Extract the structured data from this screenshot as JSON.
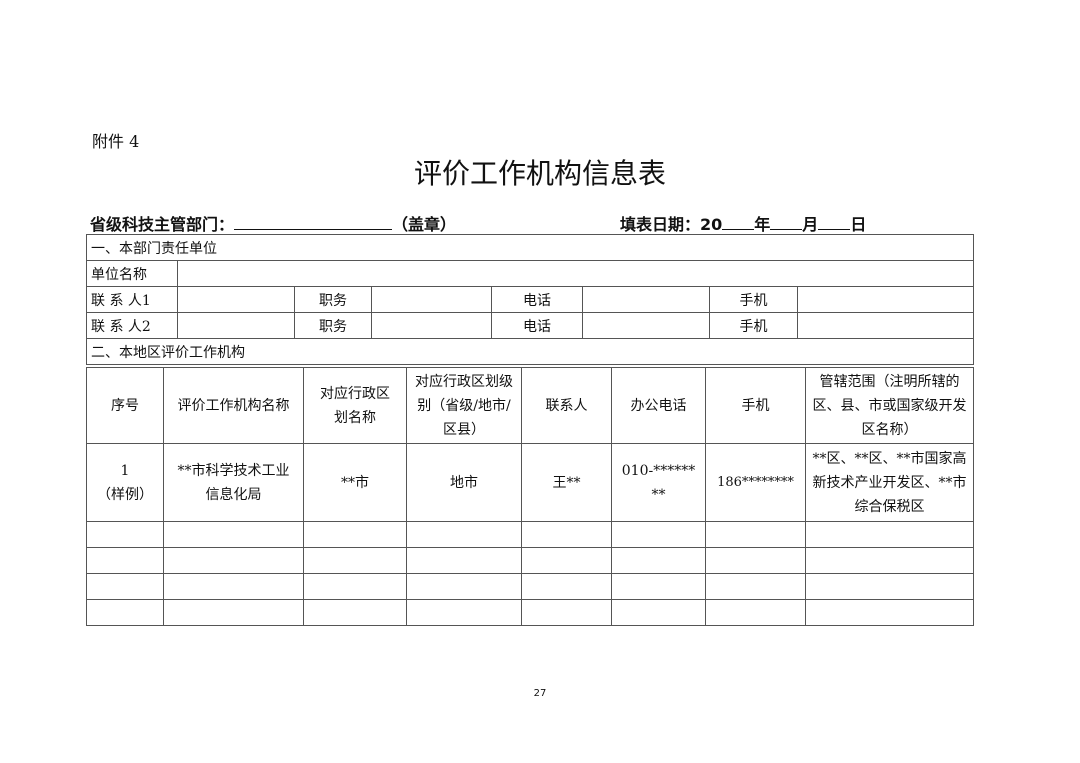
{
  "annex": "附件 4",
  "title": "评价工作机构信息表",
  "dept_label": "省级科技主管部门：",
  "seal": "（盖章）",
  "date": {
    "label": "填表日期：20",
    "year": "年",
    "month": "月",
    "day": "日"
  },
  "section1": {
    "heading": "一、本部门责任单位",
    "unit_label": "单位名称",
    "contacts": [
      {
        "label": "联 系 人1",
        "position": "职务",
        "phone": "电话",
        "mobile": "手机"
      },
      {
        "label": "联 系 人2",
        "position": "职务",
        "phone": "电话",
        "mobile": "手机"
      }
    ]
  },
  "section2": {
    "heading": "二、本地区评价工作机构",
    "columns": [
      "序号",
      "评价工作机构名称",
      "对应行政区划名称",
      "对应行政区划级别（省级/地市/区县）",
      "联系人",
      "办公电话",
      "手机",
      "管辖范围（注明所辖的区、县、市或国家级开发区名称）"
    ],
    "sample": [
      "1\n（样例）",
      "**市科学技术工业信息化局",
      "**市",
      "地市",
      "王**",
      "010-********",
      "186********",
      "**区、**区、**市国家高新技术产业开发区、**市综合保税区"
    ],
    "empty_rows": 4
  },
  "page_number": "27"
}
